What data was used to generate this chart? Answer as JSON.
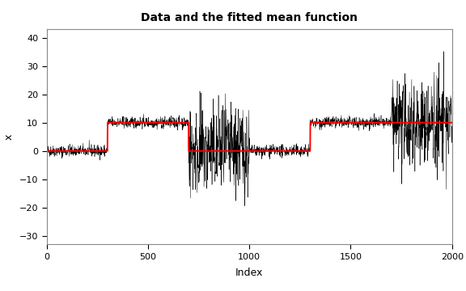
{
  "title": "Data and the fitted mean function",
  "xlabel": "Index",
  "ylabel": "x",
  "ylim": [
    -33,
    43
  ],
  "xlim": [
    0,
    2000
  ],
  "segments": [
    {
      "start": 1,
      "end": 300,
      "mean": 0,
      "sd": 1
    },
    {
      "start": 301,
      "end": 700,
      "mean": 10,
      "sd": 1
    },
    {
      "start": 701,
      "end": 1000,
      "mean": 0,
      "sd": 8
    },
    {
      "start": 1001,
      "end": 1300,
      "mean": 0,
      "sd": 1
    },
    {
      "start": 1301,
      "end": 1700,
      "mean": 10,
      "sd": 1
    },
    {
      "start": 1701,
      "end": 2000,
      "mean": 10,
      "sd": 8
    }
  ],
  "line_color": "#000000",
  "fit_color": "#ff0000",
  "bg_color": "#ffffff",
  "panel_bg": "#ffffff",
  "border_color": "#aaaaaa",
  "seed": 42,
  "title_fontsize": 10,
  "label_fontsize": 9,
  "tick_fontsize": 8,
  "xticks": [
    0,
    500,
    1000,
    1500,
    2000
  ],
  "yticks": [
    -30,
    -20,
    -10,
    0,
    10,
    20,
    30,
    40
  ]
}
